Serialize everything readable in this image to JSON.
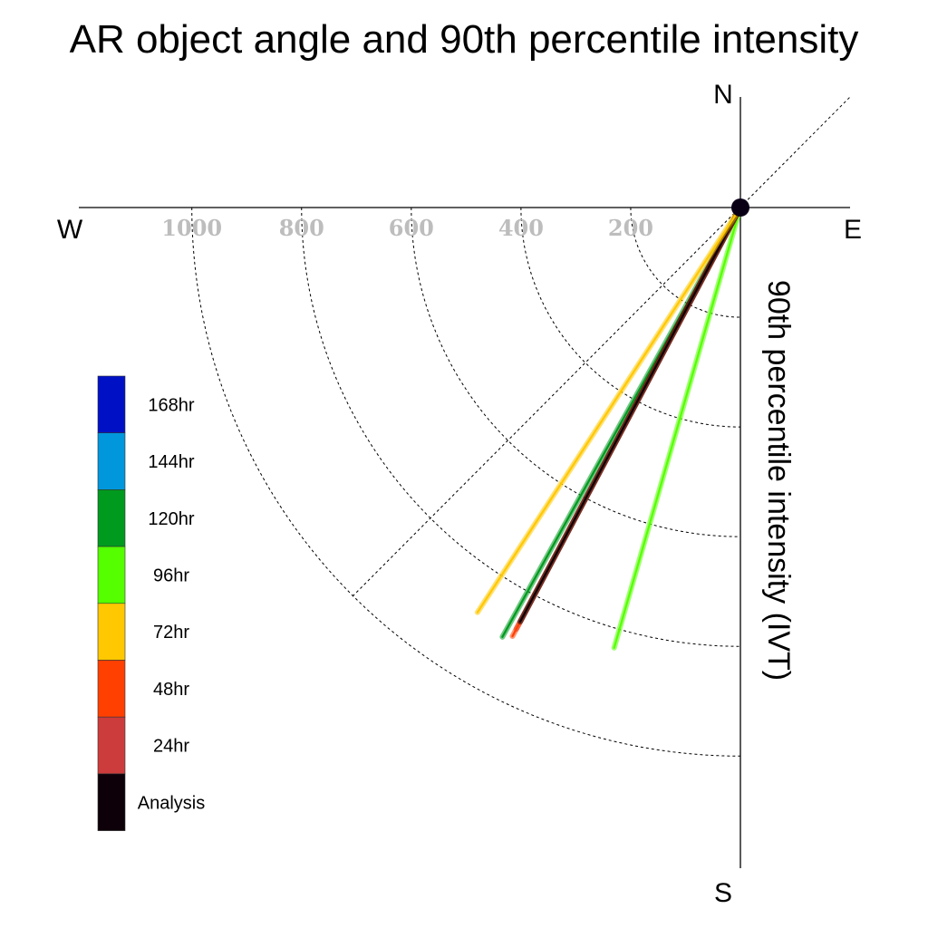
{
  "chart_data": {
    "type": "polar-vector",
    "title": "AR object angle and 90th percentile intensity",
    "ylabel": "90th percentile intensity (IVT)",
    "directions": {
      "n": "N",
      "s": "S",
      "e": "E",
      "w": "W"
    },
    "radial_ticks": [
      {
        "value": 200,
        "label": "200"
      },
      {
        "value": 400,
        "label": "400"
      },
      {
        "value": 600,
        "label": "600"
      },
      {
        "value": 800,
        "label": "800"
      },
      {
        "value": 1000,
        "label": "1000"
      }
    ],
    "rmax": 1200,
    "grid": true,
    "legend_position": "left",
    "series": [
      {
        "name": "96hr",
        "color": "#55ff00",
        "angle_deg": 196,
        "intensity": 835
      },
      {
        "name": "120hr",
        "color": "#009a1f",
        "angle_deg": 209,
        "intensity": 895
      },
      {
        "name": "24hr",
        "color": "#cc3c3c",
        "angle_deg": 208,
        "intensity": 870
      },
      {
        "name": "48hr",
        "color": "#ff4000",
        "angle_deg": 208,
        "intensity": 885
      },
      {
        "name": "Analysis",
        "color": "#0d0008",
        "angle_deg": 208,
        "intensity": 855
      },
      {
        "name": "72hr",
        "color": "#ffc800",
        "angle_deg": 213,
        "intensity": 880
      }
    ],
    "legend": [
      {
        "label": "168hr",
        "color": "#0011c5"
      },
      {
        "label": "144hr",
        "color": "#0097dd"
      },
      {
        "label": "120hr",
        "color": "#009a1f"
      },
      {
        "label": "96hr",
        "color": "#55ff00"
      },
      {
        "label": "72hr",
        "color": "#ffc800"
      },
      {
        "label": "48hr",
        "color": "#ff4000"
      },
      {
        "label": "24hr",
        "color": "#cc3c3c"
      },
      {
        "label": "Analysis",
        "color": "#0d0008"
      }
    ]
  }
}
